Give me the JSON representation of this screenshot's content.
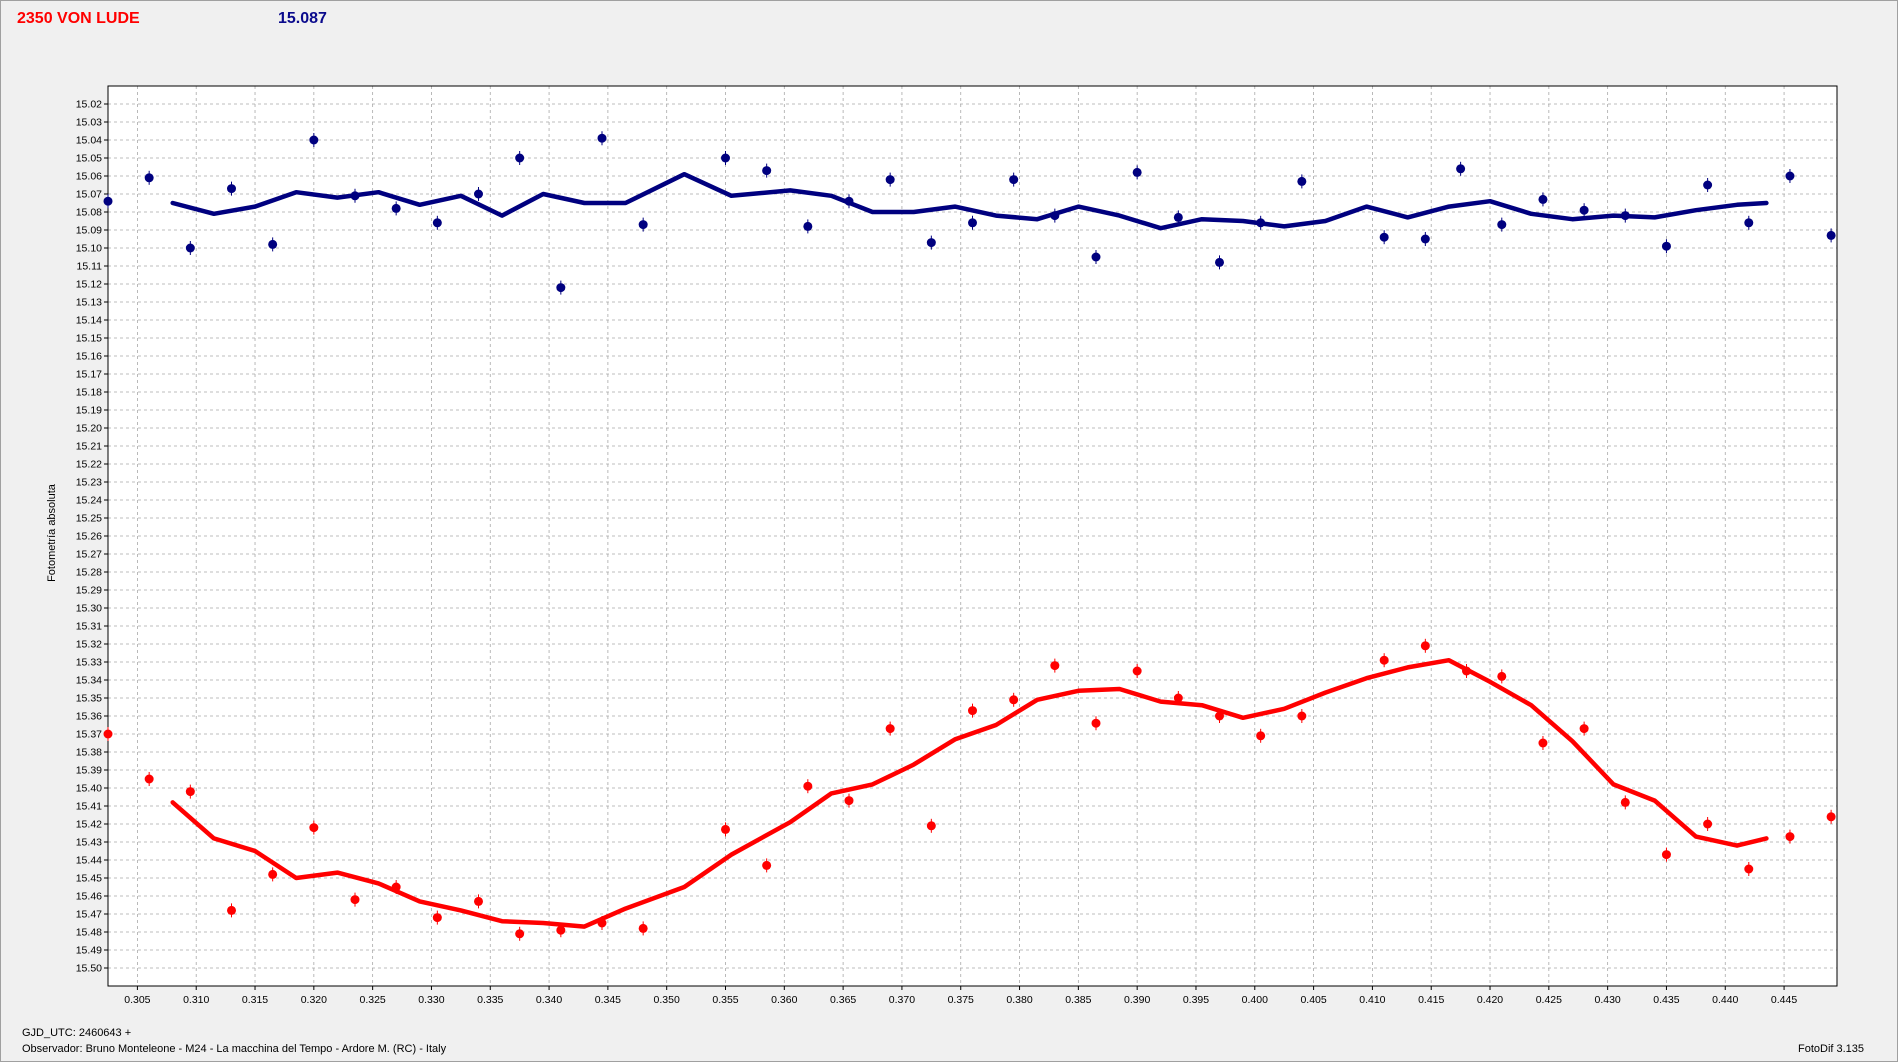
{
  "header": {
    "object": "2350 VON LUDE",
    "mean_magnitude": "15.087"
  },
  "footer": {
    "jd_label": "GJD_UTC: 2460643 +",
    "observer": "Observador: Bruno Monteleone - M24 - La macchina del Tempo - Ardore M. (RC) - Italy",
    "software": "FotoDif 3.135"
  },
  "chart_data": {
    "type": "scatter",
    "ylabel": "Fotometría absoluta",
    "xlabel": "",
    "xlim": [
      0.3025,
      0.4495
    ],
    "ylim": [
      15.01,
      15.51
    ],
    "y_inverted": true,
    "grid": true,
    "x_ticks": [
      "0.305",
      "0.310",
      "0.315",
      "0.320",
      "0.325",
      "0.330",
      "0.335",
      "0.340",
      "0.345",
      "0.350",
      "0.355",
      "0.360",
      "0.365",
      "0.370",
      "0.375",
      "0.380",
      "0.385",
      "0.390",
      "0.395",
      "0.400",
      "0.405",
      "0.410",
      "0.415",
      "0.420",
      "0.425",
      "0.430",
      "0.435",
      "0.440",
      "0.445"
    ],
    "y_ticks": [
      "15.02",
      "15.03",
      "15.04",
      "15.05",
      "15.06",
      "15.07",
      "15.08",
      "15.09",
      "15.10",
      "15.11",
      "15.12",
      "15.13",
      "15.14",
      "15.15",
      "15.16",
      "15.17",
      "15.18",
      "15.19",
      "15.20",
      "15.21",
      "15.22",
      "15.23",
      "15.24",
      "15.25",
      "15.26",
      "15.27",
      "15.28",
      "15.29",
      "15.30",
      "15.31",
      "15.32",
      "15.33",
      "15.34",
      "15.35",
      "15.36",
      "15.37",
      "15.38",
      "15.39",
      "15.40",
      "15.41",
      "15.42",
      "15.43",
      "15.44",
      "15.45",
      "15.46",
      "15.47",
      "15.48",
      "15.49",
      "15.50"
    ],
    "series": [
      {
        "color": "#00007f",
        "points": [
          [
            0.3025,
            15.074
          ],
          [
            0.306,
            15.061
          ],
          [
            0.3095,
            15.1
          ],
          [
            0.313,
            15.067
          ],
          [
            0.3165,
            15.098
          ],
          [
            0.32,
            15.04
          ],
          [
            0.3235,
            15.071
          ],
          [
            0.327,
            15.078
          ],
          [
            0.3305,
            15.086
          ],
          [
            0.334,
            15.07
          ],
          [
            0.3375,
            15.05
          ],
          [
            0.341,
            15.122
          ],
          [
            0.3445,
            15.039
          ],
          [
            0.348,
            15.087
          ],
          [
            0.355,
            15.05
          ],
          [
            0.3585,
            15.057
          ],
          [
            0.362,
            15.088
          ],
          [
            0.3655,
            15.074
          ],
          [
            0.369,
            15.062
          ],
          [
            0.3725,
            15.097
          ],
          [
            0.376,
            15.086
          ],
          [
            0.3795,
            15.062
          ],
          [
            0.383,
            15.082
          ],
          [
            0.3865,
            15.105
          ],
          [
            0.39,
            15.058
          ],
          [
            0.3935,
            15.083
          ],
          [
            0.397,
            15.108
          ],
          [
            0.4005,
            15.086
          ],
          [
            0.404,
            15.063
          ],
          [
            0.411,
            15.094
          ],
          [
            0.4145,
            15.095
          ],
          [
            0.4175,
            15.056
          ],
          [
            0.421,
            15.087
          ],
          [
            0.4245,
            15.073
          ],
          [
            0.428,
            15.079
          ],
          [
            0.4315,
            15.082
          ],
          [
            0.435,
            15.099
          ],
          [
            0.4385,
            15.065
          ],
          [
            0.442,
            15.086
          ],
          [
            0.4455,
            15.06
          ],
          [
            0.449,
            15.093
          ]
        ],
        "trend": [
          [
            0.308,
            15.075
          ],
          [
            0.3115,
            15.081
          ],
          [
            0.315,
            15.077
          ],
          [
            0.3185,
            15.069
          ],
          [
            0.322,
            15.072
          ],
          [
            0.3255,
            15.069
          ],
          [
            0.329,
            15.076
          ],
          [
            0.3325,
            15.071
          ],
          [
            0.336,
            15.082
          ],
          [
            0.3395,
            15.07
          ],
          [
            0.343,
            15.075
          ],
          [
            0.3465,
            15.075
          ],
          [
            0.3515,
            15.059
          ],
          [
            0.3555,
            15.071
          ],
          [
            0.3605,
            15.068
          ],
          [
            0.364,
            15.071
          ],
          [
            0.3675,
            15.08
          ],
          [
            0.371,
            15.08
          ],
          [
            0.3745,
            15.077
          ],
          [
            0.378,
            15.082
          ],
          [
            0.3815,
            15.084
          ],
          [
            0.385,
            15.077
          ],
          [
            0.3885,
            15.082
          ],
          [
            0.392,
            15.089
          ],
          [
            0.3955,
            15.084
          ],
          [
            0.399,
            15.085
          ],
          [
            0.4025,
            15.088
          ],
          [
            0.406,
            15.085
          ],
          [
            0.4095,
            15.077
          ],
          [
            0.413,
            15.083
          ],
          [
            0.4165,
            15.077
          ],
          [
            0.42,
            15.074
          ],
          [
            0.4235,
            15.081
          ],
          [
            0.427,
            15.084
          ],
          [
            0.4305,
            15.082
          ],
          [
            0.434,
            15.083
          ],
          [
            0.4375,
            15.079
          ],
          [
            0.441,
            15.076
          ],
          [
            0.4435,
            15.075
          ]
        ]
      },
      {
        "color": "#ff0000",
        "points": [
          [
            0.3025,
            15.37
          ],
          [
            0.306,
            15.395
          ],
          [
            0.3095,
            15.402
          ],
          [
            0.313,
            15.468
          ],
          [
            0.3165,
            15.448
          ],
          [
            0.32,
            15.422
          ],
          [
            0.3235,
            15.462
          ],
          [
            0.327,
            15.455
          ],
          [
            0.3305,
            15.472
          ],
          [
            0.334,
            15.463
          ],
          [
            0.3375,
            15.481
          ],
          [
            0.341,
            15.479
          ],
          [
            0.3445,
            15.475
          ],
          [
            0.348,
            15.478
          ],
          [
            0.355,
            15.423
          ],
          [
            0.3585,
            15.443
          ],
          [
            0.362,
            15.399
          ],
          [
            0.3655,
            15.407
          ],
          [
            0.369,
            15.367
          ],
          [
            0.3725,
            15.421
          ],
          [
            0.376,
            15.357
          ],
          [
            0.3795,
            15.351
          ],
          [
            0.383,
            15.332
          ],
          [
            0.3865,
            15.364
          ],
          [
            0.39,
            15.335
          ],
          [
            0.3935,
            15.35
          ],
          [
            0.397,
            15.36
          ],
          [
            0.4005,
            15.371
          ],
          [
            0.404,
            15.36
          ],
          [
            0.411,
            15.329
          ],
          [
            0.4145,
            15.321
          ],
          [
            0.418,
            15.335
          ],
          [
            0.421,
            15.338
          ],
          [
            0.4245,
            15.375
          ],
          [
            0.428,
            15.367
          ],
          [
            0.4315,
            15.408
          ],
          [
            0.435,
            15.437
          ],
          [
            0.4385,
            15.42
          ],
          [
            0.442,
            15.445
          ],
          [
            0.4455,
            15.427
          ],
          [
            0.449,
            15.416
          ]
        ],
        "trend": [
          [
            0.308,
            15.408
          ],
          [
            0.3115,
            15.428
          ],
          [
            0.315,
            15.435
          ],
          [
            0.3185,
            15.45
          ],
          [
            0.322,
            15.447
          ],
          [
            0.3255,
            15.453
          ],
          [
            0.329,
            15.463
          ],
          [
            0.3325,
            15.468
          ],
          [
            0.336,
            15.474
          ],
          [
            0.3395,
            15.475
          ],
          [
            0.343,
            15.477
          ],
          [
            0.3465,
            15.467
          ],
          [
            0.3515,
            15.455
          ],
          [
            0.3555,
            15.437
          ],
          [
            0.3605,
            15.419
          ],
          [
            0.364,
            15.403
          ],
          [
            0.3675,
            15.398
          ],
          [
            0.371,
            15.387
          ],
          [
            0.3745,
            15.373
          ],
          [
            0.378,
            15.365
          ],
          [
            0.3815,
            15.351
          ],
          [
            0.385,
            15.346
          ],
          [
            0.3885,
            15.345
          ],
          [
            0.392,
            15.352
          ],
          [
            0.3955,
            15.354
          ],
          [
            0.399,
            15.361
          ],
          [
            0.4025,
            15.356
          ],
          [
            0.406,
            15.347
          ],
          [
            0.4095,
            15.339
          ],
          [
            0.413,
            15.333
          ],
          [
            0.4165,
            15.329
          ],
          [
            0.42,
            15.341
          ],
          [
            0.4235,
            15.354
          ],
          [
            0.427,
            15.374
          ],
          [
            0.4305,
            15.398
          ],
          [
            0.434,
            15.407
          ],
          [
            0.4375,
            15.427
          ],
          [
            0.441,
            15.432
          ],
          [
            0.4435,
            15.428
          ]
        ]
      }
    ]
  }
}
